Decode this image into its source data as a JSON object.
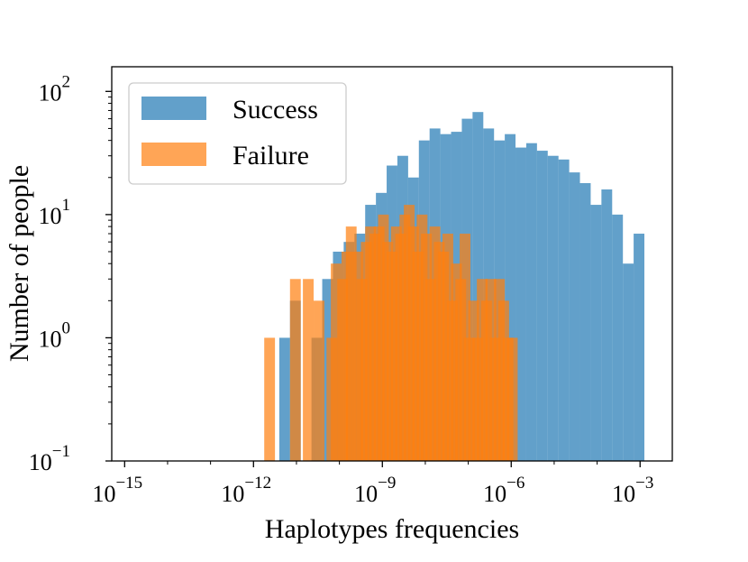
{
  "chart_data": {
    "type": "bar",
    "scale": {
      "x": "log10",
      "y": "log10"
    },
    "xlim_log10": [
      -15.3,
      -2.25
    ],
    "ylim_log10": [
      -1,
      2.2
    ],
    "bin_width_log10": 0.25,
    "xlabel": "Haplotypes frequencies",
    "ylabel": "Number of people",
    "x_ticks": [
      {
        "base": "10",
        "exp": "−15",
        "log": -15
      },
      {
        "base": "10",
        "exp": "−12",
        "log": -12
      },
      {
        "base": "10",
        "exp": "−9",
        "log": -9
      },
      {
        "base": "10",
        "exp": "−6",
        "log": -6
      },
      {
        "base": "10",
        "exp": "−3",
        "log": -3
      }
    ],
    "y_ticks": [
      {
        "base": "10",
        "exp": "−1",
        "log": -1
      },
      {
        "base": "10",
        "exp": "0",
        "log": 0
      },
      {
        "base": "10",
        "exp": "1",
        "log": 1
      },
      {
        "base": "10",
        "exp": "2",
        "log": 2
      }
    ],
    "legend": {
      "placement": "top-left"
    },
    "series": [
      {
        "name": "Success",
        "color": "#1f77b4",
        "bin_start_log10": [
          -11.4,
          -11.15,
          -10.9,
          -10.65,
          -10.4,
          -10.15,
          -9.9,
          -9.65,
          -9.4,
          -9.15,
          -8.9,
          -8.65,
          -8.4,
          -8.15,
          -7.9,
          -7.65,
          -7.4,
          -7.15,
          -6.9,
          -6.65,
          -6.4,
          -6.15,
          -5.9,
          -5.65,
          -5.4,
          -5.15,
          -4.9,
          -4.65,
          -4.4,
          -4.15,
          -3.9,
          -3.65,
          -3.4,
          -3.15
        ],
        "values": [
          1,
          2,
          0,
          1,
          3,
          5,
          6,
          7,
          12,
          15,
          25,
          30,
          20,
          40,
          50,
          45,
          47,
          60,
          68,
          50,
          40,
          45,
          35,
          38,
          33,
          30,
          28,
          22,
          18,
          12,
          16,
          10,
          4,
          7
        ]
      },
      {
        "name": "Failure",
        "color": "#ff7f0e",
        "bin_start_log10": [
          -11.75,
          -11.15,
          -10.85,
          -10.6,
          -10.3,
          -10.2,
          -10.05,
          -9.95,
          -9.85,
          -9.7,
          -9.6,
          -9.5,
          -9.4,
          -9.3,
          -9.2,
          -9.1,
          -9.0,
          -8.9,
          -8.8,
          -8.7,
          -8.6,
          -8.5,
          -8.4,
          -8.3,
          -8.2,
          -8.1,
          -8.0,
          -7.9,
          -7.8,
          -7.7,
          -7.6,
          -7.5,
          -7.4,
          -7.3,
          -7.2,
          -7.1,
          -7.0,
          -6.9,
          -6.8,
          -6.7,
          -6.6,
          -6.5,
          -6.4,
          -6.3,
          -6.2,
          -6.1
        ],
        "values": [
          1,
          3,
          3,
          2,
          1,
          4,
          3,
          5,
          8,
          5,
          3,
          6,
          8,
          7,
          8,
          10,
          6,
          5,
          8,
          7,
          10,
          12,
          8,
          5,
          10,
          7,
          3,
          8,
          6,
          5,
          7,
          2,
          4,
          3,
          7,
          1,
          2,
          1,
          3,
          2,
          3,
          1,
          3,
          2,
          1,
          1
        ]
      }
    ]
  }
}
